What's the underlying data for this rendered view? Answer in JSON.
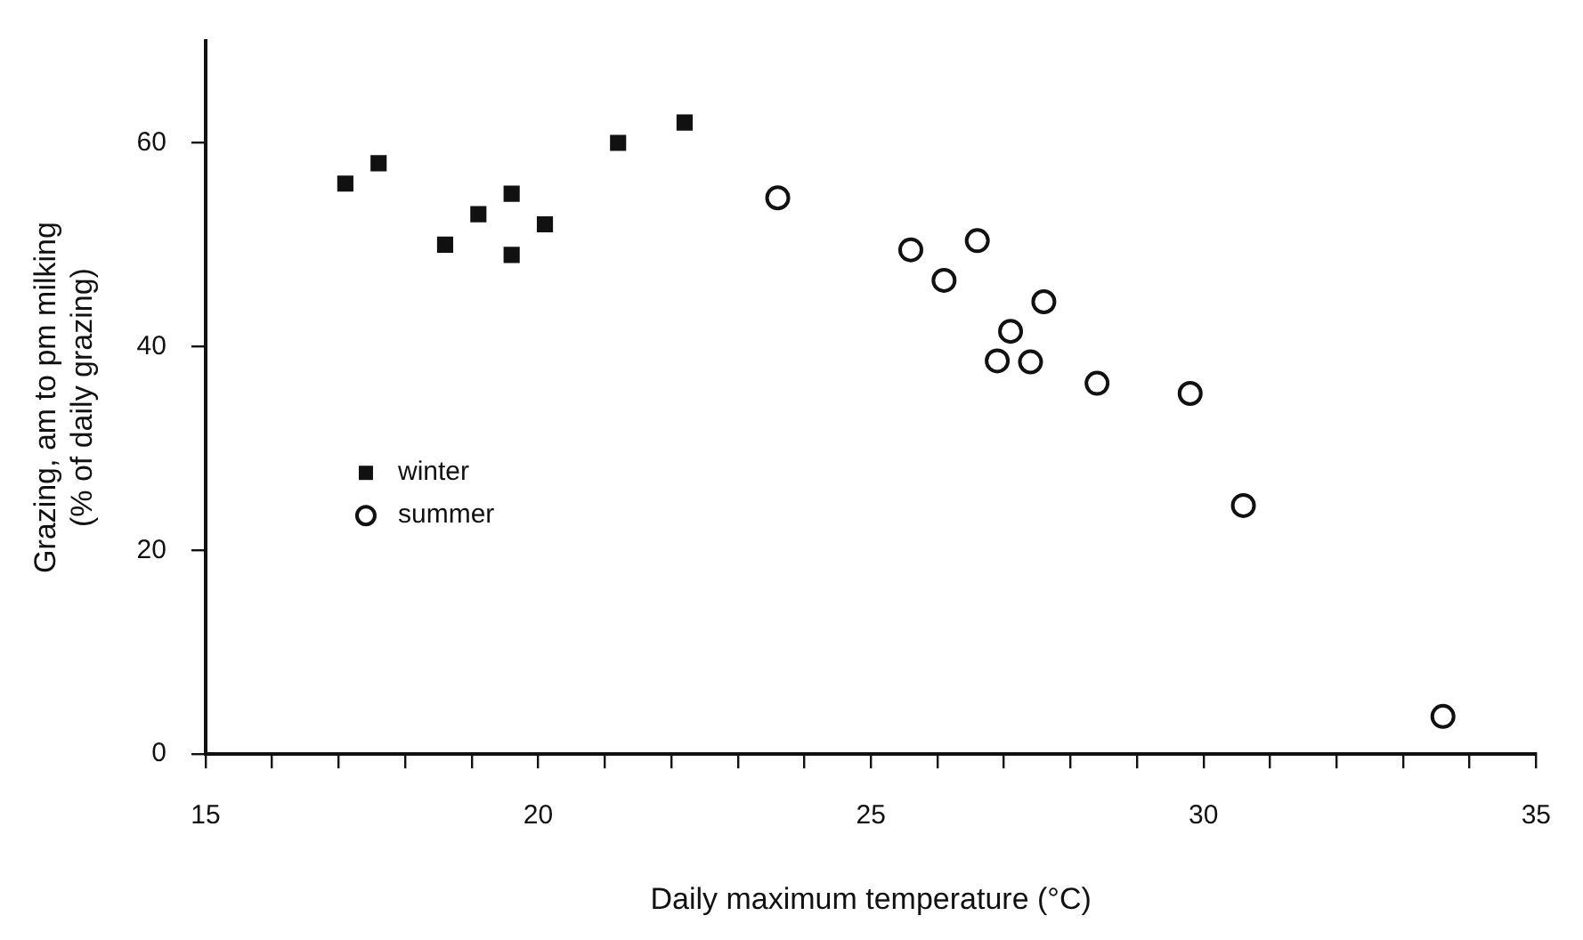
{
  "chart_data": {
    "type": "scatter",
    "xlabel": "Daily maximum temperature (°C)",
    "ylabel": "Grazing, am to pm milking\n(% of daily grazing)",
    "xlim": [
      15,
      35
    ],
    "ylim": [
      0,
      70
    ],
    "xticks": [
      15,
      {
        "value": 16,
        "label": null
      },
      {
        "value": 17,
        "label": null
      },
      {
        "value": 18,
        "label": null
      },
      {
        "value": 19,
        "label": null
      },
      20,
      {
        "value": 21,
        "label": null
      },
      {
        "value": 22,
        "label": null
      },
      {
        "value": 23,
        "label": null
      },
      {
        "value": 24,
        "label": null
      },
      25,
      {
        "value": 26,
        "label": null
      },
      {
        "value": 27,
        "label": null
      },
      {
        "value": 28,
        "label": null
      },
      {
        "value": 29,
        "label": null
      },
      30,
      {
        "value": 31,
        "label": null
      },
      {
        "value": 32,
        "label": null
      },
      {
        "value": 33,
        "label": null
      },
      {
        "value": 34,
        "label": null
      },
      35
    ],
    "yticks": [
      0,
      20,
      40,
      60
    ],
    "grid": false,
    "legend": "bottom left",
    "series": [
      {
        "name": "winter",
        "color": "#111111",
        "marker": "square",
        "x": [
          17.1,
          17.6,
          18.6,
          19.1,
          19.6,
          19.6,
          20.1,
          21.2,
          22.2
        ],
        "values": [
          56,
          58,
          50,
          53,
          55,
          49,
          52,
          60,
          62
        ]
      },
      {
        "name": "summer",
        "color": "#111111",
        "marker": "circle",
        "x": [
          23.6,
          25.6,
          26.6,
          26.1,
          27.6,
          27.1,
          26.9,
          27.4,
          28.4,
          29.8,
          30.6,
          33.6
        ],
        "values": [
          54.6,
          49.5,
          50.4,
          46.5,
          44.4,
          41.5,
          38.6,
          38.5,
          36.4,
          35.4,
          24.4,
          3.7
        ]
      }
    ]
  }
}
